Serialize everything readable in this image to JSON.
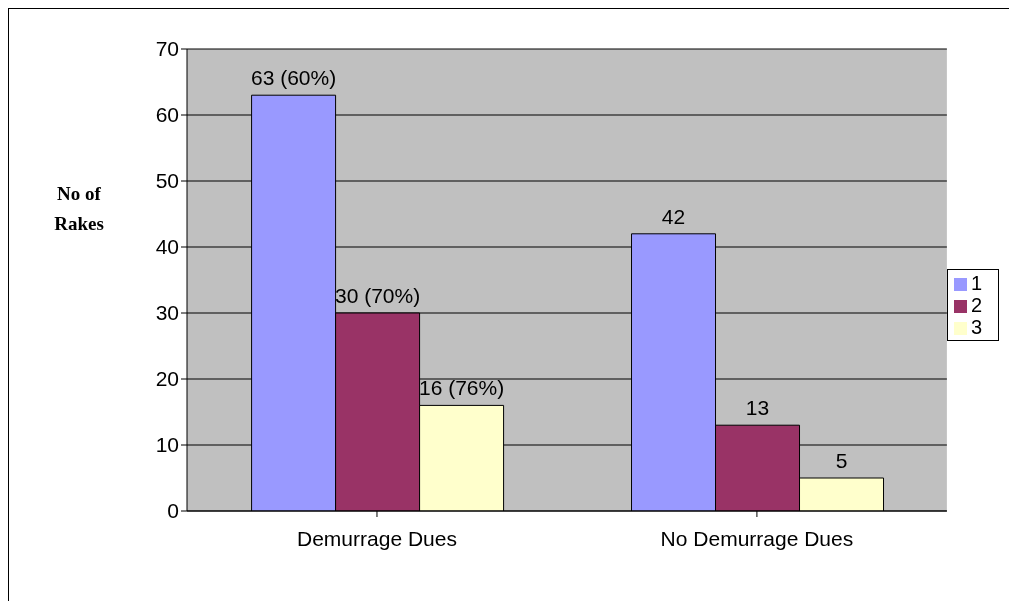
{
  "chart_data": {
    "type": "bar",
    "ylabel": "No of Rakes",
    "categories": [
      "Demurrage Dues",
      "No Demurrage Dues"
    ],
    "series": [
      {
        "name": "1",
        "color": "#9999ff",
        "values": [
          63,
          42
        ],
        "value_labels": [
          "63 (60%)",
          "42"
        ]
      },
      {
        "name": "2",
        "color": "#993366",
        "values": [
          30,
          13
        ],
        "value_labels": [
          "30 (70%)",
          "13"
        ]
      },
      {
        "name": "3",
        "color": "#ffffcc",
        "values": [
          16,
          5
        ],
        "value_labels": [
          "16 (76%)",
          "5"
        ]
      }
    ],
    "ylim": [
      0,
      70
    ],
    "yticks": [
      0,
      10,
      20,
      30,
      40,
      50,
      60,
      70
    ],
    "grid": "y",
    "legend": "right"
  }
}
